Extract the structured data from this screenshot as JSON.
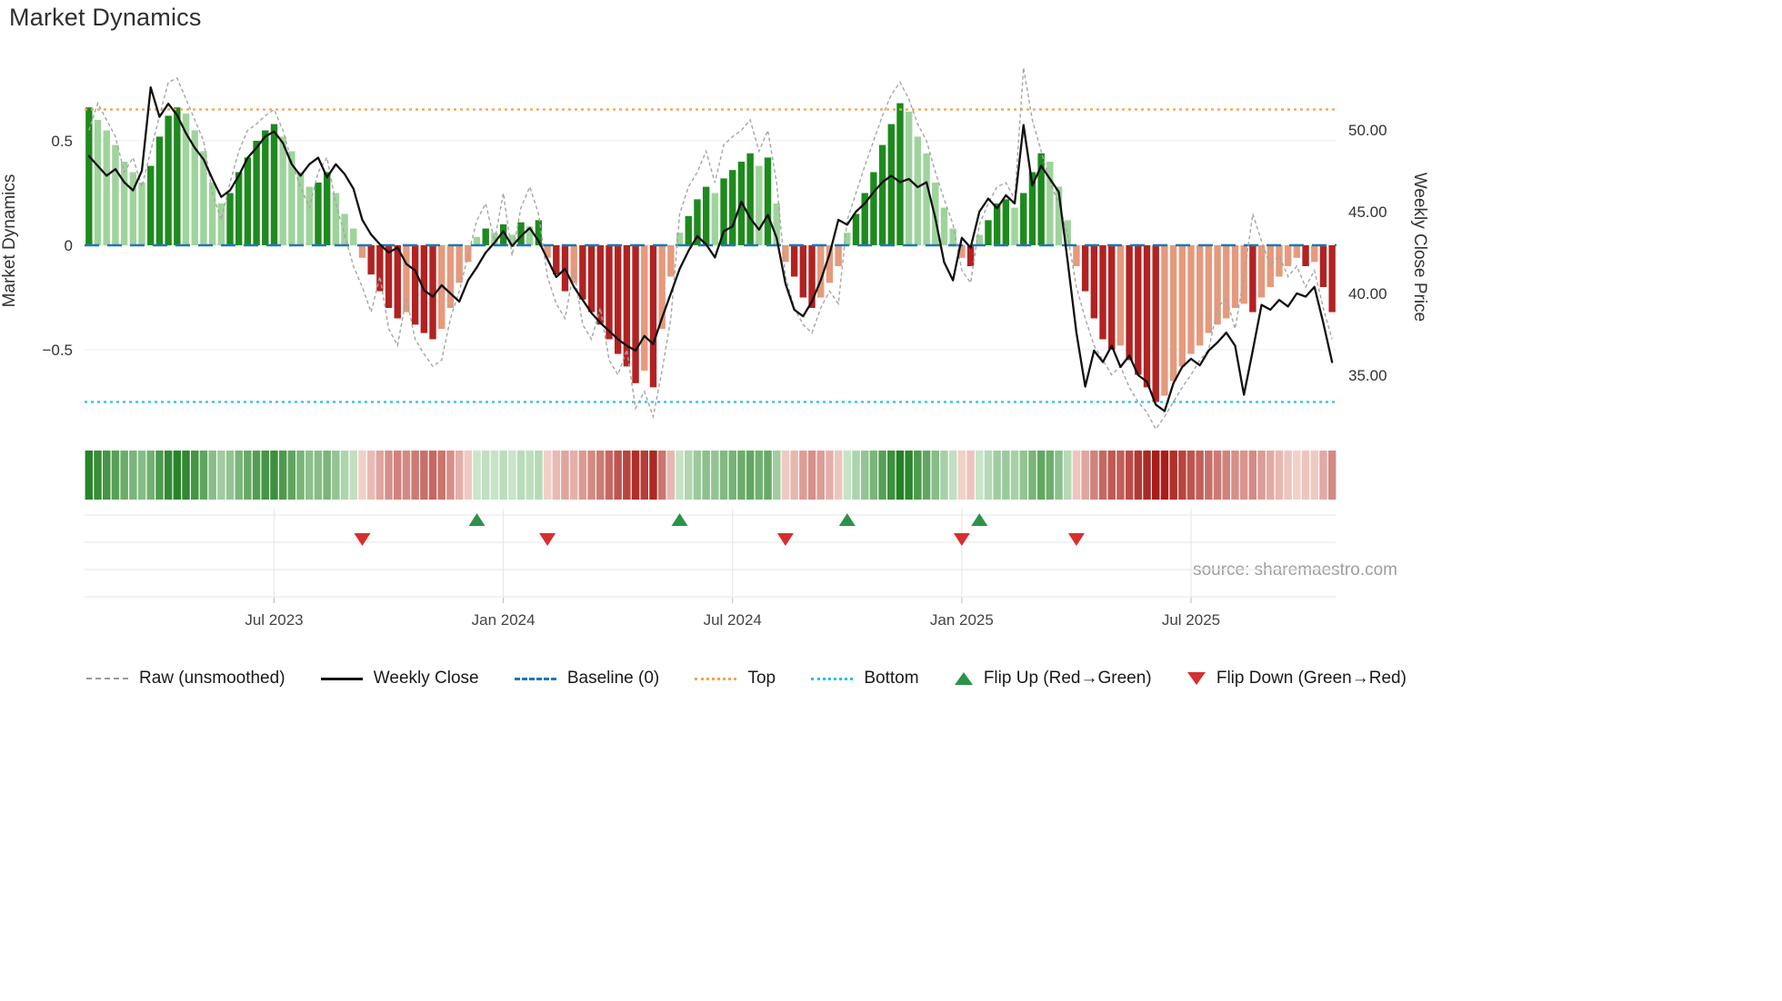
{
  "title": "Market Dynamics",
  "source": "source: sharemaestro.com",
  "colors": {
    "bar_green_dark": "#1e8a1e",
    "bar_green_light": "#9ed49b",
    "bar_red_dark": "#b22222",
    "bar_red_light": "#e59a7d",
    "raw_line": "#a5a5a5",
    "close_line": "#111111",
    "baseline": "#1f77b4",
    "top_line": "#f2a44e",
    "bottom_line": "#29c0e8",
    "flip_up": "#2b9348",
    "flip_down": "#d62f2f",
    "grid": "#ececec"
  },
  "legend": {
    "items": [
      {
        "label": "Raw (unsmoothed)",
        "swatch": "dashed-gray-line"
      },
      {
        "label": "Weekly Close",
        "swatch": "solid-black-line"
      },
      {
        "label": "Baseline (0)",
        "swatch": "dashed-blue-line"
      },
      {
        "label": "Top",
        "swatch": "dotted-orange-line"
      },
      {
        "label": "Bottom",
        "swatch": "dotted-cyan-line"
      },
      {
        "label": "Flip Up (Red→Green)",
        "swatch": "green-up-triangle"
      },
      {
        "label": "Flip Down (Green→Red)",
        "swatch": "red-down-triangle"
      }
    ]
  },
  "chart_data": {
    "type": "bar",
    "subtype": "oscillator-bars + overlay lines + heatmap strip + flip markers",
    "n_points": 142,
    "x_unit": "week",
    "x_ticks": [
      {
        "week": 21,
        "label": "Jul 2023"
      },
      {
        "week": 47,
        "label": "Jan 2024"
      },
      {
        "week": 73,
        "label": "Jul 2024"
      },
      {
        "week": 99,
        "label": "Jan 2025"
      },
      {
        "week": 125,
        "label": "Jul 2025"
      }
    ],
    "left_axis": {
      "label": "Market Dynamics",
      "range": [
        -0.88,
        0.9
      ],
      "ticks": [
        {
          "v": 0.5,
          "label": "0.5"
        },
        {
          "v": 0,
          "label": "0"
        },
        {
          "v": -0.5,
          "label": "−0.5"
        }
      ]
    },
    "right_axis": {
      "label": "Weekly Close Price",
      "range": [
        31.5,
        53.5
      ],
      "ticks": [
        {
          "v": 50,
          "label": "50.00"
        },
        {
          "v": 45,
          "label": "45.00"
        },
        {
          "v": 40,
          "label": "40.00"
        },
        {
          "v": 35,
          "label": "35.00"
        }
      ]
    },
    "baseline": 0,
    "top_threshold": 0.65,
    "bottom_threshold": -0.75,
    "flip_up_weeks": [
      44,
      67,
      86,
      101
    ],
    "flip_down_weeks": [
      31,
      52,
      79,
      99,
      112
    ],
    "bars": {
      "name": "Market Dynamics (smoothed oscillator)",
      "values": [
        0.66,
        0.6,
        0.55,
        0.48,
        0.4,
        0.35,
        0.3,
        0.38,
        0.52,
        0.62,
        0.66,
        0.63,
        0.55,
        0.45,
        0.3,
        0.2,
        0.25,
        0.35,
        0.42,
        0.5,
        0.55,
        0.58,
        0.52,
        0.45,
        0.35,
        0.28,
        0.3,
        0.35,
        0.25,
        0.15,
        0.08,
        -0.06,
        -0.14,
        -0.22,
        -0.3,
        -0.35,
        -0.32,
        -0.38,
        -0.42,
        -0.45,
        -0.4,
        -0.3,
        -0.18,
        -0.08,
        0.04,
        0.08,
        0.06,
        0.1,
        0.05,
        0.11,
        0.09,
        0.12,
        -0.06,
        -0.14,
        -0.22,
        -0.18,
        -0.26,
        -0.32,
        -0.38,
        -0.45,
        -0.52,
        -0.58,
        -0.66,
        -0.6,
        -0.68,
        -0.4,
        -0.15,
        0.06,
        0.14,
        0.22,
        0.28,
        0.25,
        0.32,
        0.36,
        0.4,
        0.44,
        0.38,
        0.42,
        0.2,
        -0.08,
        -0.15,
        -0.25,
        -0.3,
        -0.25,
        -0.18,
        -0.1,
        0.06,
        0.15,
        0.25,
        0.35,
        0.48,
        0.58,
        0.68,
        0.64,
        0.52,
        0.44,
        0.3,
        0.18,
        0.08,
        -0.06,
        -0.1,
        0.05,
        0.12,
        0.2,
        0.22,
        0.18,
        0.25,
        0.35,
        0.44,
        0.4,
        0.28,
        0.12,
        -0.1,
        -0.22,
        -0.35,
        -0.45,
        -0.5,
        -0.48,
        -0.55,
        -0.62,
        -0.68,
        -0.75,
        -0.72,
        -0.65,
        -0.58,
        -0.52,
        -0.48,
        -0.42,
        -0.38,
        -0.35,
        -0.3,
        -0.28,
        -0.32,
        -0.25,
        -0.2,
        -0.15,
        -0.1,
        -0.06,
        -0.1,
        -0.08,
        -0.2,
        -0.32
      ]
    },
    "raw_line": {
      "name": "Raw (unsmoothed)",
      "values": [
        0.55,
        0.68,
        0.6,
        0.52,
        0.35,
        0.42,
        0.28,
        0.45,
        0.62,
        0.78,
        0.8,
        0.7,
        0.6,
        0.5,
        0.25,
        0.12,
        0.3,
        0.45,
        0.55,
        0.58,
        0.62,
        0.65,
        0.55,
        0.4,
        0.28,
        0.18,
        0.35,
        0.42,
        0.2,
        0.05,
        -0.1,
        -0.2,
        -0.32,
        -0.15,
        -0.4,
        -0.48,
        -0.25,
        -0.45,
        -0.52,
        -0.58,
        -0.55,
        -0.35,
        -0.22,
        -0.05,
        0.12,
        0.2,
        0.02,
        0.25,
        -0.05,
        0.18,
        0.28,
        0.15,
        -0.15,
        -0.28,
        -0.35,
        -0.12,
        -0.38,
        -0.45,
        -0.3,
        -0.55,
        -0.62,
        -0.5,
        -0.78,
        -0.7,
        -0.82,
        -0.6,
        -0.35,
        0.15,
        0.28,
        0.35,
        0.45,
        0.3,
        0.48,
        0.52,
        0.55,
        0.6,
        0.45,
        0.55,
        0.3,
        -0.15,
        -0.3,
        -0.38,
        -0.42,
        -0.3,
        -0.22,
        -0.28,
        0.12,
        0.25,
        0.38,
        0.5,
        0.62,
        0.72,
        0.78,
        0.7,
        0.58,
        0.5,
        0.35,
        0.22,
        0.1,
        -0.12,
        -0.18,
        0.1,
        0.2,
        0.28,
        0.3,
        0.22,
        0.85,
        0.6,
        0.45,
        0.3,
        0.2,
        0.05,
        -0.2,
        -0.35,
        -0.48,
        -0.55,
        -0.62,
        -0.58,
        -0.68,
        -0.75,
        -0.8,
        -0.88,
        -0.82,
        -0.75,
        -0.68,
        -0.62,
        -0.55,
        -0.5,
        -0.3,
        -0.25,
        -0.4,
        -0.15,
        0.15,
        0.02,
        -0.1,
        -0.05,
        -0.15,
        -0.1,
        -0.2,
        -0.12,
        -0.3,
        -0.45
      ]
    },
    "price_line": {
      "name": "Weekly Close",
      "values": [
        48.4,
        47.8,
        47.2,
        47.6,
        46.8,
        46.3,
        47.5,
        52.6,
        50.8,
        51.6,
        50.9,
        49.8,
        48.9,
        48.2,
        47.0,
        45.9,
        46.3,
        47.2,
        48.3,
        48.9,
        49.6,
        49.9,
        49.2,
        47.9,
        47.2,
        47.9,
        48.3,
        47.1,
        47.9,
        47.3,
        46.4,
        44.5,
        43.6,
        43.0,
        42.5,
        42.8,
        41.8,
        41.4,
        40.2,
        39.8,
        40.5,
        40.0,
        39.5,
        40.8,
        41.6,
        42.5,
        43.1,
        43.8,
        42.9,
        43.5,
        44.0,
        43.2,
        42.1,
        41.0,
        41.5,
        40.4,
        39.6,
        38.8,
        38.2,
        37.7,
        37.2,
        36.8,
        36.5,
        37.4,
        36.9,
        38.5,
        40.0,
        41.5,
        42.6,
        43.5,
        43.0,
        42.2,
        43.8,
        44.1,
        45.6,
        44.6,
        43.9,
        44.8,
        43.4,
        40.6,
        39.0,
        38.6,
        39.5,
        40.8,
        42.4,
        44.5,
        44.2,
        45.0,
        45.5,
        46.2,
        46.8,
        47.2,
        46.8,
        47.0,
        46.5,
        46.8,
        44.6,
        41.9,
        40.8,
        43.4,
        42.8,
        45.0,
        45.8,
        45.2,
        46.0,
        45.5,
        50.3,
        46.6,
        47.8,
        47.0,
        46.2,
        42.0,
        37.6,
        34.3,
        36.5,
        35.8,
        36.8,
        35.5,
        36.2,
        35.0,
        34.6,
        33.2,
        32.8,
        34.5,
        35.5,
        36.0,
        35.6,
        36.5,
        37.0,
        37.6,
        36.8,
        33.8,
        36.5,
        39.3,
        39.0,
        39.6,
        39.2,
        40.0,
        39.8,
        40.4,
        38.2,
        35.8
      ]
    }
  }
}
